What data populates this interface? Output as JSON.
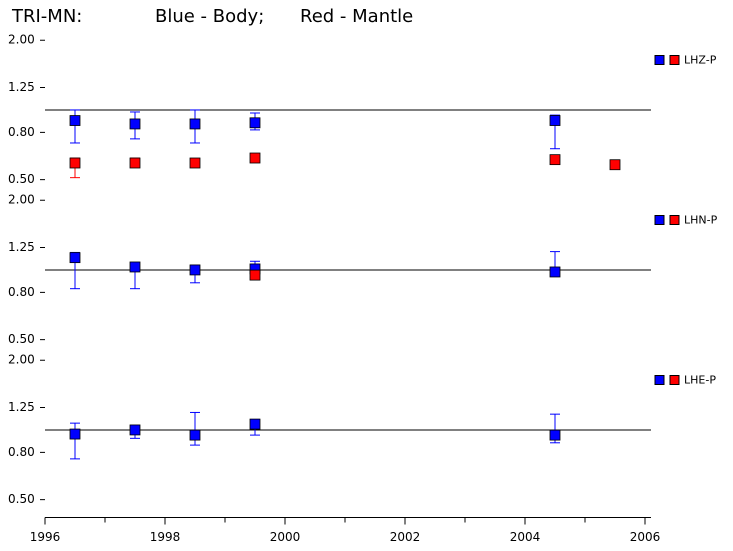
{
  "title_parts": [
    {
      "text": "TRI-MN:",
      "color": "#000000"
    },
    {
      "text": "Blue - Body;",
      "color": "#0000ff"
    },
    {
      "text": "Red - Mantle",
      "color": "#ff0000"
    }
  ],
  "chart_data": [
    {
      "type": "errorscatter",
      "legend_label": "LHZ-P",
      "log_y": true,
      "reference_line": 1,
      "x": [
        1996.5,
        1997.5,
        1998.5,
        1999.5,
        2004.5,
        2005.5
      ],
      "xlim": [
        1996,
        2006
      ],
      "ylim": [
        0.44,
        2.16
      ],
      "yticks": [
        {
          "value": 0.5,
          "label": "0.50"
        },
        {
          "value": 0.8,
          "label": "0.80"
        },
        {
          "value": 1.25,
          "label": "1.25"
        },
        {
          "value": 2,
          "label": "2.00"
        }
      ],
      "series": [
        {
          "color": "#0000ff",
          "values": [
            0.9,
            0.87,
            0.87,
            0.88,
            0.9,
            null
          ],
          "low": [
            0.72,
            0.75,
            0.72,
            0.82,
            0.68,
            null
          ],
          "high": [
            1.0,
            0.98,
            1.0,
            0.97,
            0.95,
            null
          ]
        },
        {
          "color": "#ff0000",
          "values": [
            0.59,
            0.59,
            0.59,
            0.62,
            0.61,
            0.58
          ],
          "low": [
            0.51,
            0.57,
            0.57,
            0.6,
            null,
            null
          ],
          "high": [
            0.62,
            0.62,
            0.61,
            0.64,
            null,
            null
          ]
        }
      ]
    },
    {
      "type": "errorscatter",
      "legend_label": "LHN-P",
      "log_y": true,
      "reference_line": 1,
      "x": [
        1996.5,
        1997.5,
        1998.5,
        1999.5,
        2004.5,
        2005.5
      ],
      "xlim": [
        1996,
        2006
      ],
      "ylim": [
        0.44,
        2.16
      ],
      "yticks": [
        {
          "value": 0.5,
          "label": "0.50"
        },
        {
          "value": 0.8,
          "label": "0.80"
        },
        {
          "value": 1.25,
          "label": "1.25"
        },
        {
          "value": 2,
          "label": "2.00"
        }
      ],
      "series": [
        {
          "color": "#0000ff",
          "values": [
            1.13,
            1.03,
            1.0,
            1.01,
            0.98,
            null
          ],
          "low": [
            0.83,
            0.83,
            0.88,
            0.91,
            0.96,
            null
          ],
          "high": [
            1.19,
            1.06,
            1.05,
            1.09,
            1.2,
            null
          ]
        },
        {
          "color": "#ff0000",
          "values": [
            null,
            null,
            null,
            0.95,
            null,
            null
          ],
          "low": [
            null,
            null,
            null,
            null,
            null,
            null
          ],
          "high": [
            null,
            null,
            null,
            null,
            null,
            null
          ]
        }
      ]
    },
    {
      "type": "errorscatter",
      "legend_label": "LHE-P",
      "log_y": true,
      "reference_line": 1,
      "x": [
        1996.5,
        1997.5,
        1998.5,
        1999.5,
        2004.5,
        2005.5
      ],
      "xlim": [
        1996,
        2006
      ],
      "ylim": [
        0.44,
        2.16
      ],
      "yticks": [
        {
          "value": 0.5,
          "label": "0.50"
        },
        {
          "value": 0.8,
          "label": "0.80"
        },
        {
          "value": 1.25,
          "label": "1.25"
        },
        {
          "value": 2,
          "label": "2.00"
        }
      ],
      "xticks": [
        1996,
        1998,
        2000,
        2002,
        2004,
        2006
      ],
      "xminorticks": [
        1997,
        1999,
        2001,
        2003,
        2005
      ],
      "series": [
        {
          "color": "#0000ff",
          "values": [
            0.96,
            1.0,
            0.95,
            1.06,
            0.95,
            null
          ],
          "low": [
            0.75,
            0.92,
            0.86,
            0.95,
            0.88,
            null
          ],
          "high": [
            1.07,
            1.03,
            1.19,
            1.11,
            1.17,
            null
          ]
        },
        {
          "color": "#ff0000",
          "values": [
            null,
            null,
            null,
            null,
            null,
            null
          ],
          "low": [
            null,
            null,
            null,
            null,
            null,
            null
          ],
          "high": [
            null,
            null,
            null,
            null,
            null,
            null
          ]
        }
      ]
    }
  ]
}
